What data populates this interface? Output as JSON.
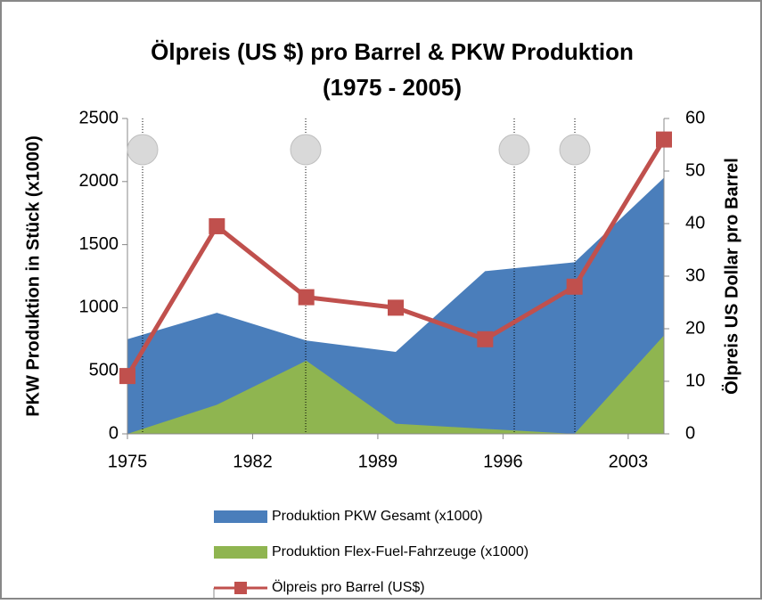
{
  "chart_data": {
    "type": "area-line",
    "title": "Ölpreis  (US $) pro Barrel & PKW Produktion",
    "subtitle": "(1975 - 2005)",
    "ylabel": "PKW Produktion in Stück (x1000)",
    "y2label": "Ölpreis US Dollar pro Barrel",
    "x": [
      1975,
      1980,
      1985,
      1990,
      1995,
      2000,
      2005
    ],
    "xlim": [
      1975,
      2005
    ],
    "xticks": [
      1975,
      1982,
      1989,
      1996,
      2003
    ],
    "ylim": [
      0,
      2500
    ],
    "yticks": [
      0,
      500,
      1000,
      1500,
      2000,
      2500
    ],
    "y2lim": [
      0,
      60
    ],
    "y2ticks": [
      0,
      10,
      20,
      30,
      40,
      50,
      60
    ],
    "series": [
      {
        "name": "Produktion PKW Gesamt (x1000)",
        "type": "area",
        "color": "#4a7ebb",
        "values": [
          750,
          960,
          740,
          650,
          1290,
          1360,
          2030
        ]
      },
      {
        "name": "Produktion Flex-Fuel-Fahrzeuge (x1000)",
        "type": "area",
        "color": "#8fb550",
        "values": [
          0,
          230,
          580,
          80,
          40,
          0,
          780
        ]
      },
      {
        "name": "Ölpreis pro Barrel (US$)",
        "type": "line",
        "axis": "y2",
        "color": "#c0504d",
        "values": [
          11,
          39.5,
          26,
          24,
          18,
          28,
          56
        ]
      }
    ]
  }
}
